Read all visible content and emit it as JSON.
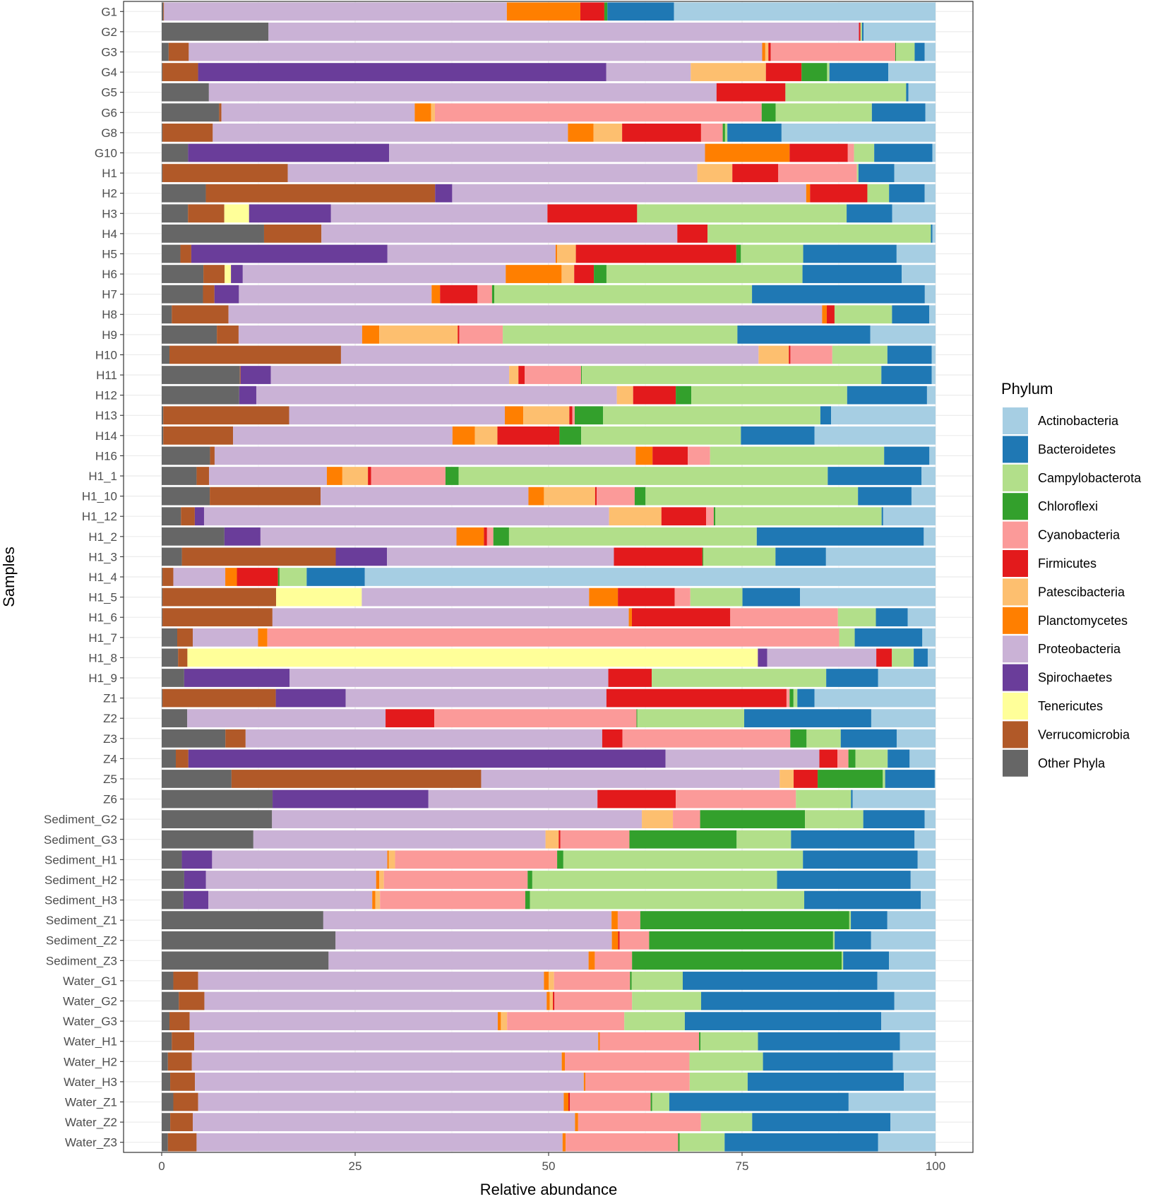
{
  "chart_data": {
    "type": "bar",
    "orientation": "horizontal",
    "stacked": true,
    "title": "",
    "xlabel": "Relative abundance",
    "ylabel": "Samples",
    "xlim": [
      0,
      100
    ],
    "xticks": [
      0,
      25,
      50,
      75,
      100
    ],
    "grid": true,
    "legend_title": "Phylum",
    "legend_position": "right",
    "categories": [
      "G1",
      "G2",
      "G3",
      "G4",
      "G5",
      "G6",
      "G8",
      "G10",
      "H1",
      "H2",
      "H3",
      "H4",
      "H5",
      "H6",
      "H7",
      "H8",
      "H9",
      "H10",
      "H11",
      "H12",
      "H13",
      "H14",
      "H16",
      "H1_1",
      "H1_10",
      "H1_12",
      "H1_2",
      "H1_3",
      "H1_4",
      "H1_5",
      "H1_6",
      "H1_7",
      "H1_8",
      "H1_9",
      "Z1",
      "Z2",
      "Z3",
      "Z4",
      "Z5",
      "Z6",
      "Sediment_G2",
      "Sediment_G3",
      "Sediment_H1",
      "Sediment_H2",
      "Sediment_H3",
      "Sediment_Z1",
      "Sediment_Z2",
      "Sediment_Z3",
      "Water_G1",
      "Water_G2",
      "Water_G3",
      "Water_H1",
      "Water_H2",
      "Water_H3",
      "Water_Z1",
      "Water_Z2",
      "Water_Z3"
    ],
    "stack_order": [
      "Other Phyla",
      "Verrucomicrobia",
      "Tenericutes",
      "Spirochaetes",
      "Proteobacteria",
      "Planctomycetes",
      "Patescibacteria",
      "Firmicutes",
      "Cyanobacteria",
      "Chloroflexi",
      "Campylobacterota",
      "Bacteroidetes",
      "Actinobacteria"
    ],
    "legend": [
      {
        "name": "Actinobacteria",
        "color": "#a6cee3"
      },
      {
        "name": "Bacteroidetes",
        "color": "#1f78b4"
      },
      {
        "name": "Campylobacterota",
        "color": "#b2df8a"
      },
      {
        "name": "Chloroflexi",
        "color": "#33a02c"
      },
      {
        "name": "Cyanobacteria",
        "color": "#fb9a99"
      },
      {
        "name": "Firmicutes",
        "color": "#e31a1c"
      },
      {
        "name": "Patescibacteria",
        "color": "#fdbf6f"
      },
      {
        "name": "Planctomycetes",
        "color": "#ff7f00"
      },
      {
        "name": "Proteobacteria",
        "color": "#cab2d6"
      },
      {
        "name": "Spirochaetes",
        "color": "#6a3d9a"
      },
      {
        "name": "Tenericutes",
        "color": "#ffff99"
      },
      {
        "name": "Verrucomicrobia",
        "color": "#b15928"
      },
      {
        "name": "Other Phyla",
        "color": "#666666"
      }
    ],
    "series": [
      {
        "name": "Other Phyla",
        "values": [
          0.2,
          13.8,
          0.9,
          0.1,
          6.1,
          7.4,
          0.1,
          3.4,
          0.1,
          5.7,
          3.4,
          13.2,
          2.4,
          5.3,
          5.4,
          1.3,
          7.1,
          1.0,
          10.1,
          10.0,
          0.2,
          0.2,
          6.3,
          4.5,
          6.2,
          2.5,
          8.0,
          2.6,
          0.1,
          0.1,
          0.1,
          2.0,
          2.1,
          2.9,
          0.1,
          3.3,
          8.2,
          1.8,
          9.0,
          14.3,
          14.2,
          11.8,
          2.6,
          2.9,
          2.8,
          20.8,
          22.4,
          21.5,
          1.5,
          2.2,
          1.0,
          1.3,
          0.8,
          1.1,
          1.5,
          1.1,
          0.8
        ]
      },
      {
        "name": "Verrucomicrobia",
        "values": [
          0.1,
          0.0,
          2.6,
          4.6,
          0.0,
          0.3,
          6.5,
          0.0,
          16.1,
          29.6,
          4.7,
          7.4,
          1.4,
          2.7,
          1.5,
          7.3,
          2.8,
          22.1,
          0.1,
          0.0,
          16.4,
          9.0,
          0.6,
          1.6,
          14.3,
          1.8,
          0.0,
          19.8,
          1.4,
          14.6,
          14.2,
          2.0,
          1.2,
          0.0,
          14.6,
          0.0,
          2.6,
          1.6,
          32.2,
          0.0,
          0.0,
          0.0,
          0.0,
          0.0,
          0.0,
          0.0,
          0.0,
          0.0,
          3.2,
          3.3,
          2.6,
          2.9,
          3.1,
          3.2,
          3.2,
          2.9,
          3.7
        ]
      },
      {
        "name": "Tenericutes",
        "values": [
          0.0,
          0.0,
          0.0,
          0.0,
          0.0,
          0.0,
          0.0,
          0.0,
          0.0,
          0.0,
          3.2,
          0.0,
          0.0,
          0.8,
          0.0,
          0.0,
          0.0,
          0.0,
          0.0,
          0.0,
          0.0,
          0.0,
          0.0,
          0.0,
          0.0,
          0.0,
          0.0,
          0.0,
          0.0,
          11.0,
          0.0,
          0.0,
          73.2,
          0.0,
          0.0,
          0.0,
          0.0,
          0.0,
          0.0,
          0.0,
          0.0,
          0.0,
          0.0,
          0.0,
          0.0,
          0.0,
          0.0,
          0.0,
          0.0,
          0.0,
          0.0,
          0.0,
          0.0,
          0.0,
          0.0,
          0.0,
          0.0
        ]
      },
      {
        "name": "Spirochaetes",
        "values": [
          0.0,
          0.0,
          0.0,
          52.7,
          0.0,
          0.0,
          0.0,
          25.9,
          0.0,
          2.2,
          10.6,
          0.0,
          25.2,
          1.5,
          3.2,
          0.0,
          0.0,
          0.0,
          3.9,
          2.2,
          0.0,
          0.0,
          0.0,
          0.0,
          0.0,
          1.2,
          4.6,
          6.6,
          0.0,
          0.0,
          0.0,
          0.0,
          1.2,
          13.6,
          9.0,
          0.0,
          0.0,
          60.8,
          0.0,
          20.1,
          0.0,
          0.0,
          3.9,
          2.8,
          3.2,
          0.0,
          0.0,
          0.0,
          0.0,
          0.0,
          0.0,
          0.0,
          0.0,
          0.0,
          0.0,
          0.0,
          0.0
        ]
      },
      {
        "name": "Proteobacteria",
        "values": [
          44.3,
          76.3,
          74.1,
          10.9,
          65.6,
          24.9,
          45.9,
          40.7,
          52.6,
          45.7,
          28.0,
          45.9,
          21.6,
          33.4,
          25.2,
          76.4,
          15.9,
          53.8,
          30.8,
          46.5,
          28.1,
          28.3,
          54.9,
          15.2,
          26.8,
          52.6,
          25.0,
          29.2,
          6.7,
          29.2,
          46.0,
          8.4,
          14.0,
          41.1,
          33.6,
          25.6,
          45.9,
          19.6,
          38.5,
          21.8,
          47.6,
          37.6,
          22.6,
          21.9,
          21.1,
          37.1,
          35.6,
          33.5,
          44.6,
          44.1,
          39.7,
          52.1,
          47.8,
          50.3,
          47.1,
          49.2,
          47.2
        ]
      },
      {
        "name": "Planctomycetes",
        "values": [
          9.5,
          0.0,
          0.4,
          0.0,
          0.0,
          2.1,
          3.3,
          10.9,
          0.0,
          0.5,
          0.0,
          0.0,
          0.2,
          7.1,
          1.1,
          0.6,
          2.2,
          0.0,
          0.0,
          0.0,
          2.4,
          2.9,
          2.2,
          2.0,
          2.0,
          0.0,
          3.5,
          0.0,
          1.5,
          3.7,
          0.4,
          1.2,
          0.0,
          0.0,
          0.0,
          0.0,
          0.0,
          0.0,
          0.0,
          0.0,
          0.0,
          0.0,
          0.2,
          0.4,
          0.4,
          0.8,
          0.8,
          0.8,
          0.6,
          0.4,
          0.4,
          0.2,
          0.4,
          0.2,
          0.6,
          0.4,
          0.4
        ]
      },
      {
        "name": "Patescibacteria",
        "values": [
          0.0,
          0.0,
          0.4,
          9.7,
          0.0,
          0.5,
          3.7,
          0.0,
          4.5,
          0.0,
          0.0,
          0.0,
          2.4,
          1.6,
          0.0,
          0.0,
          10.1,
          3.9,
          1.2,
          2.1,
          6.0,
          2.9,
          0.0,
          3.3,
          6.6,
          6.8,
          0.0,
          0.0,
          0.0,
          0.0,
          0.0,
          0.0,
          0.0,
          0.0,
          0.0,
          0.0,
          0.0,
          0.0,
          1.8,
          0.0,
          4.0,
          1.7,
          0.8,
          0.6,
          0.6,
          0.0,
          0.0,
          0.0,
          0.7,
          0.4,
          0.8,
          0.0,
          0.0,
          0.0,
          0.0,
          0.0,
          0.0
        ]
      },
      {
        "name": "Firmicutes",
        "values": [
          3.1,
          0.2,
          0.3,
          4.6,
          8.9,
          0.0,
          10.2,
          7.5,
          5.9,
          7.4,
          11.6,
          3.9,
          20.6,
          2.5,
          4.9,
          1.0,
          0.2,
          0.2,
          0.8,
          5.5,
          0.4,
          8.0,
          4.6,
          0.4,
          0.2,
          5.8,
          0.4,
          11.4,
          5.3,
          7.3,
          12.7,
          0.0,
          2.0,
          5.6,
          23.2,
          6.3,
          2.6,
          2.3,
          3.1,
          10.1,
          0.0,
          0.2,
          0.0,
          0.0,
          0.0,
          0.0,
          0.2,
          0.0,
          0.0,
          0.2,
          0.0,
          0.0,
          0.0,
          0.0,
          0.2,
          0.0,
          0.0
        ]
      },
      {
        "name": "Cyanobacteria",
        "values": [
          0.0,
          0.0,
          16.1,
          0.0,
          0.0,
          42.1,
          2.8,
          0.8,
          10.1,
          0.0,
          0.0,
          0.0,
          0.0,
          0.0,
          1.9,
          0.0,
          5.6,
          5.4,
          7.3,
          0.0,
          0.3,
          0.0,
          2.9,
          9.6,
          4.9,
          1.0,
          0.8,
          0.0,
          0.0,
          2.0,
          13.9,
          73.6,
          0.0,
          0.0,
          0.4,
          26.1,
          21.6,
          1.4,
          0.0,
          15.5,
          3.5,
          8.9,
          20.9,
          18.5,
          18.7,
          2.9,
          3.8,
          4.8,
          9.8,
          10.0,
          15.1,
          12.8,
          16.1,
          13.5,
          10.4,
          15.8,
          14.5
        ]
      },
      {
        "name": "Chloroflexi",
        "values": [
          0.4,
          0.0,
          0.1,
          3.3,
          0.0,
          1.8,
          0.3,
          0.0,
          0.0,
          0.0,
          0.0,
          0.0,
          0.6,
          1.6,
          0.3,
          0.0,
          0.0,
          0.0,
          0.1,
          2.0,
          3.7,
          2.8,
          0.0,
          1.7,
          1.4,
          0.2,
          2.0,
          0.1,
          0.2,
          0.0,
          0.0,
          0.0,
          0.0,
          0.0,
          0.5,
          0.1,
          2.1,
          0.9,
          8.4,
          0.0,
          13.5,
          13.8,
          0.8,
          0.6,
          0.6,
          26.9,
          23.7,
          27.0,
          0.2,
          0.0,
          0.0,
          0.2,
          0.0,
          0.0,
          0.2,
          0.0,
          0.2
        ]
      },
      {
        "name": "Campylobacterota",
        "values": [
          0.0,
          0.2,
          2.4,
          0.3,
          15.6,
          12.4,
          0.3,
          2.6,
          0.2,
          2.8,
          27.1,
          28.8,
          8.0,
          24.9,
          33.7,
          7.4,
          30.2,
          7.1,
          38.7,
          20.1,
          28.3,
          20.6,
          22.7,
          47.6,
          27.4,
          21.6,
          31.6,
          9.3,
          3.5,
          6.7,
          4.9,
          2.0,
          2.8,
          22.5,
          0.5,
          13.8,
          4.4,
          4.1,
          0.3,
          7.1,
          7.5,
          7.0,
          30.9,
          31.5,
          35.3,
          0.2,
          0.2,
          0.2,
          6.6,
          8.9,
          7.8,
          7.4,
          9.5,
          7.5,
          2.2,
          6.6,
          5.8
        ]
      },
      {
        "name": "Bacteroidetes",
        "values": [
          8.6,
          0.2,
          1.3,
          7.6,
          0.3,
          6.9,
          7.0,
          7.5,
          4.6,
          4.6,
          5.9,
          0.2,
          12.0,
          12.6,
          22.6,
          4.8,
          17.1,
          5.7,
          6.5,
          10.3,
          1.4,
          9.5,
          5.9,
          12.1,
          6.9,
          0.2,
          21.3,
          6.5,
          7.5,
          7.4,
          4.1,
          8.7,
          1.8,
          6.7,
          2.2,
          16.4,
          7.2,
          2.8,
          6.4,
          0.2,
          7.9,
          15.9,
          14.8,
          17.2,
          15.0,
          4.7,
          4.7,
          5.9,
          25.1,
          24.9,
          25.3,
          18.3,
          16.8,
          20.2,
          23.1,
          17.8,
          19.8
        ]
      },
      {
        "name": "Actinobacteria",
        "values": [
          33.8,
          9.3,
          1.4,
          6.1,
          3.5,
          1.3,
          19.9,
          0.4,
          5.3,
          1.4,
          5.6,
          0.4,
          5.0,
          4.3,
          1.4,
          0.8,
          8.4,
          0.5,
          0.5,
          1.1,
          13.6,
          15.6,
          0.8,
          1.8,
          3.1,
          6.8,
          1.5,
          14.1,
          73.6,
          17.4,
          3.6,
          1.7,
          1.0,
          7.4,
          15.6,
          8.3,
          5.0,
          3.3,
          0.1,
          10.7,
          1.4,
          2.7,
          2.3,
          3.2,
          1.9,
          6.2,
          8.3,
          6.0,
          7.5,
          5.3,
          7.0,
          4.6,
          5.5,
          4.1,
          11.2,
          5.8,
          7.4
        ]
      }
    ]
  }
}
